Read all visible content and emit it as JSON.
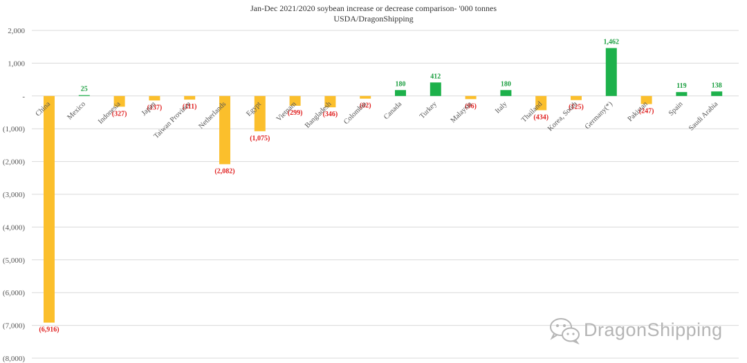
{
  "chart_data": {
    "type": "bar",
    "title": "Jan-Dec 2021/2020 soybean increase or decrease comparison- '000 tonnes",
    "subtitle": "USDA/DragonShipping",
    "categories": [
      "China",
      "Mexico",
      "Indonesia",
      "Japan",
      "Taiwan Province",
      "Netherlands",
      "Egypt",
      "Vietnam",
      "Bangladesh",
      "Colombia",
      "Canada",
      "Turkey",
      "Malaysia",
      "Italy",
      "Thailand",
      "Korea, South",
      "Germany(*)",
      "Pakistan",
      "Spain",
      "Saudi Arabia"
    ],
    "values": [
      -6916,
      25,
      -327,
      -137,
      -111,
      -2082,
      -1075,
      -299,
      -346,
      -82,
      180,
      412,
      -96,
      180,
      -434,
      -125,
      1462,
      -247,
      119,
      138
    ],
    "value_labels": [
      "(6,916)",
      "25",
      "(327)",
      "(137)",
      "(111)",
      "(2,082)",
      "(1,075)",
      "(299)",
      "(346)",
      "(82)",
      "180",
      "412",
      "(96)",
      "180",
      "(434)",
      "(125)",
      "1,462",
      "(247)",
      "119",
      "138"
    ],
    "y_ticks": [
      2000,
      1000,
      0,
      -1000,
      -2000,
      -3000,
      -4000,
      -5000,
      -6000,
      -7000,
      -8000
    ],
    "y_tick_labels": [
      "2,000",
      "1,000",
      "-",
      "(1,000)",
      "(2,000)",
      "(3,000)",
      "(4,000)",
      "(5,000)",
      "(6,000)",
      "(7,000)",
      "(8,000)"
    ],
    "ylim": [
      -8000,
      2000
    ],
    "grid": true,
    "legend": "none",
    "colors": {
      "increase": "#1db14b",
      "decrease": "#fbbf2c",
      "increase_label": "#1a9e3f",
      "decrease_label": "#e02020"
    }
  },
  "watermark": {
    "text": "DragonShipping",
    "icon": "wechat-icon"
  }
}
